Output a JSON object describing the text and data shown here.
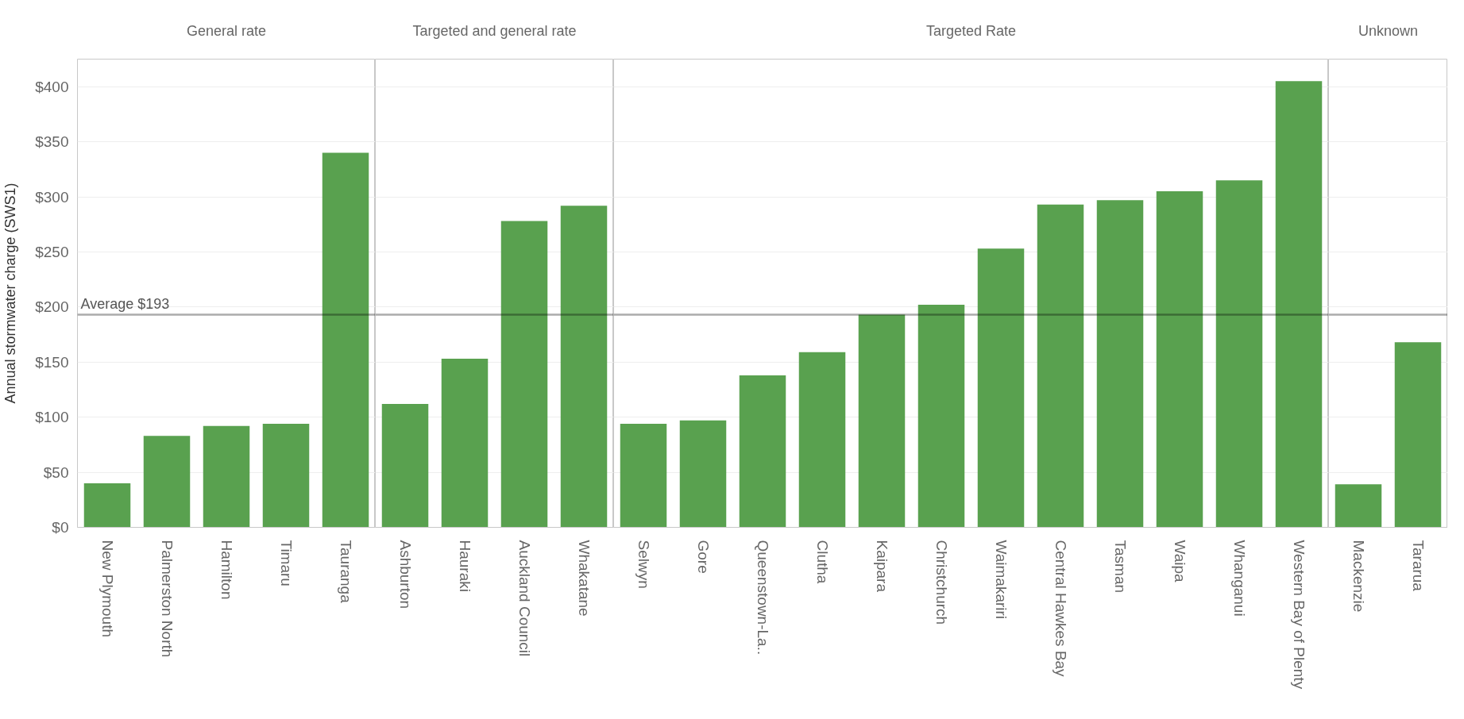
{
  "chart_data": [
    {
      "type": "bar",
      "title": "General rate",
      "categories": [
        "New Plymouth",
        "Palmerston North",
        "Hamilton",
        "Timaru",
        "Tauranga"
      ],
      "values": [
        40,
        83,
        92,
        94,
        340
      ],
      "color": "#59a14f",
      "ylabel": "Annual stormwater charge (SWS1)",
      "ylim": [
        0,
        425
      ],
      "yticks": [
        {
          "value": 0,
          "label": "$0"
        },
        {
          "value": 50,
          "label": "$50"
        },
        {
          "value": 100,
          "label": "$100"
        },
        {
          "value": 150,
          "label": "$150"
        },
        {
          "value": 200,
          "label": "$200"
        },
        {
          "value": 250,
          "label": "$250"
        },
        {
          "value": 300,
          "label": "$300"
        },
        {
          "value": 350,
          "label": "$350"
        },
        {
          "value": 400,
          "label": "$400"
        }
      ],
      "grid": "y",
      "ref_lines": [
        {
          "axis": "y",
          "value": 193,
          "label": "Average $193"
        }
      ]
    },
    {
      "type": "bar",
      "title": "Targeted and general rate",
      "categories": [
        "Ashburton",
        "Hauraki",
        "Auckland Council",
        "Whakatane"
      ],
      "values": [
        112,
        153,
        278,
        292
      ],
      "color": "#59a14f",
      "ylim": [
        0,
        425
      ],
      "yticks": [
        0,
        50,
        100,
        150,
        200,
        250,
        300,
        350,
        400
      ],
      "grid": "y",
      "tick_labels": "x",
      "ref_lines": [
        {
          "axis": "y",
          "value": 193
        }
      ]
    },
    {
      "type": "bar",
      "title": "Targeted Rate",
      "categories": [
        "Selwyn",
        "Gore",
        "Queenstown-La..",
        "Clutha",
        "Kaipara",
        "Christchurch",
        "Waimakariri",
        "Central Hawkes Bay",
        "Tasman",
        "Waipa",
        "Whanganui",
        "Western Bay of Plenty"
      ],
      "values": [
        94,
        97,
        138,
        159,
        193,
        202,
        253,
        293,
        297,
        305,
        315,
        405
      ],
      "color": "#59a14f",
      "ylim": [
        0,
        425
      ],
      "yticks": [
        0,
        50,
        100,
        150,
        200,
        250,
        300,
        350,
        400
      ],
      "grid": "y",
      "tick_labels": "x",
      "ref_lines": [
        {
          "axis": "y",
          "value": 193
        }
      ]
    },
    {
      "type": "bar",
      "title": "Unknown",
      "categories": [
        "Mackenzie",
        "Tararua"
      ],
      "values": [
        39,
        168
      ],
      "color": "#59a14f",
      "ylim": [
        0,
        425
      ],
      "yticks": [
        0,
        50,
        100,
        150,
        200,
        250,
        300,
        350,
        400
      ],
      "grid": "y",
      "tick_labels": "x",
      "ref_lines": [
        {
          "axis": "y",
          "value": 193
        }
      ]
    }
  ]
}
